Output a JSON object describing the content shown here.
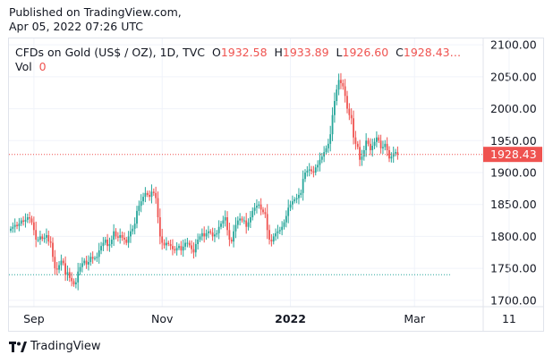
{
  "published": {
    "line1": "Published on TradingView.com,",
    "line2": "Apr 05, 2022 07:26 UTC"
  },
  "legend": {
    "symbol": "CFDs on Gold (US$ / OZ), 1D, TVC",
    "open_label": "O",
    "open": "1932.58",
    "high_label": "H",
    "high": "1933.89",
    "low_label": "L",
    "low": "1926.60",
    "close_label": "C",
    "close": "1928.43…",
    "vol_label": "Vol",
    "vol": "0"
  },
  "footer": {
    "brand": "TradingView"
  },
  "colors": {
    "up": "#26a69a",
    "down": "#ef5350",
    "grid": "#f0f3fa",
    "text": "#131722"
  },
  "chart_data": {
    "type": "candlestick",
    "y_axis": {
      "min": 1690,
      "max": 2110,
      "ticks": [
        1700,
        1750,
        1800,
        1850,
        1900,
        1950,
        2000,
        2050,
        2100
      ]
    },
    "x_axis": {
      "labels": [
        "Sep",
        "Nov",
        "2022",
        "Mar",
        "11"
      ],
      "label_days": [
        11,
        72,
        133,
        192,
        237
      ]
    },
    "last_price": 1928.43,
    "reference_level": 1740,
    "closes": [
      1812,
      1815,
      1818,
      1816,
      1820,
      1825,
      1823,
      1826,
      1830,
      1828,
      1822,
      1810,
      1795,
      1795,
      1800,
      1796,
      1798,
      1802,
      1792,
      1790,
      1768,
      1750,
      1748,
      1755,
      1762,
      1758,
      1740,
      1744,
      1735,
      1730,
      1725,
      1728,
      1745,
      1752,
      1758,
      1762,
      1756,
      1760,
      1768,
      1765,
      1766,
      1768,
      1778,
      1785,
      1790,
      1795,
      1785,
      1788,
      1795,
      1808,
      1800,
      1798,
      1802,
      1798,
      1795,
      1790,
      1800,
      1808,
      1812,
      1820,
      1840,
      1848,
      1855,
      1862,
      1868,
      1865,
      1862,
      1870,
      1868,
      1860,
      1830,
      1800,
      1790,
      1786,
      1790,
      1788,
      1785,
      1780,
      1778,
      1782,
      1785,
      1778,
      1784,
      1790,
      1790,
      1786,
      1780,
      1775,
      1788,
      1795,
      1800,
      1805,
      1800,
      1805,
      1808,
      1806,
      1800,
      1803,
      1805,
      1815,
      1820,
      1825,
      1830,
      1810,
      1795,
      1792,
      1808,
      1818,
      1825,
      1828,
      1825,
      1825,
      1815,
      1822,
      1830,
      1840,
      1845,
      1848,
      1850,
      1842,
      1838,
      1835,
      1810,
      1795,
      1792,
      1800,
      1805,
      1808,
      1810,
      1815,
      1822,
      1832,
      1845,
      1850,
      1855,
      1858,
      1860,
      1865,
      1868,
      1890,
      1900,
      1903,
      1905,
      1902,
      1900,
      1908,
      1912,
      1920,
      1925,
      1932,
      1938,
      1945,
      1960,
      1990,
      2012,
      2030,
      2045,
      2040,
      2035,
      2020,
      2000,
      1990,
      1985,
      1955,
      1945,
      1940,
      1920,
      1925,
      1935,
      1950,
      1945,
      1935,
      1942,
      1948,
      1955,
      1950,
      1938,
      1940,
      1945,
      1935,
      1922,
      1925,
      1930,
      1932,
      1928
    ]
  }
}
